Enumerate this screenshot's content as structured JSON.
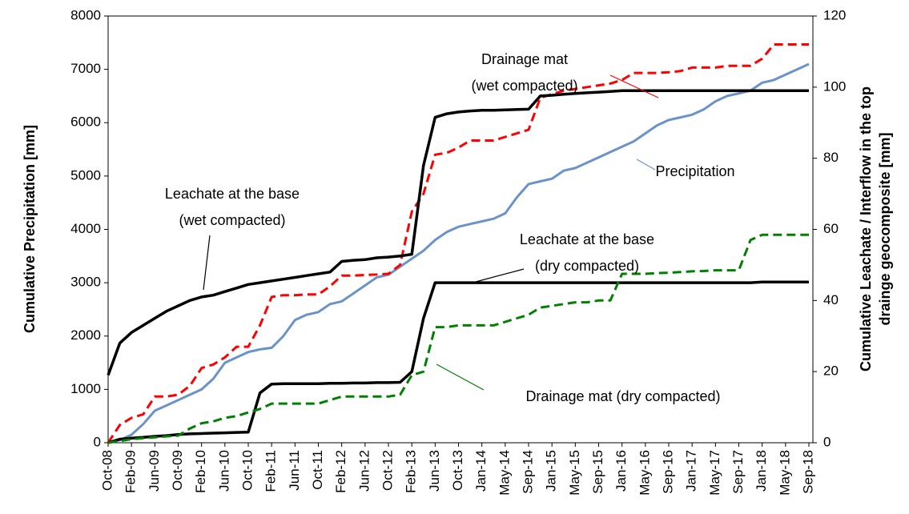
{
  "chart_data": {
    "type": "line",
    "y_label": "Cumulative Precipitation [mm]",
    "y2_label": [
      "Cumulative Leachate / Interflow in the top",
      "drainge geocomposite [mm]"
    ],
    "categories": [
      "Oct-08",
      null,
      "Feb-09",
      null,
      "Jun-09",
      null,
      "Oct-09",
      null,
      "Feb-10",
      null,
      "Jun-10",
      null,
      "Oct-10",
      null,
      "Feb-11",
      null,
      "Jun-11",
      null,
      "Oct-11",
      null,
      "Feb-12",
      null,
      "Jun-12",
      null,
      "Oct-12",
      null,
      "Feb-13",
      null,
      "Jun-13",
      null,
      "Oct-13",
      null,
      "Jan-14",
      null,
      "May-14",
      null,
      "Sep-14",
      null,
      "Jan-15",
      null,
      "May-15",
      null,
      "Sep-15",
      null,
      "Jan-16",
      null,
      "May-16",
      null,
      "Sep-16",
      null,
      "Jan-17",
      null,
      "May-17",
      null,
      "Sep-17",
      null,
      "Jan-18",
      null,
      "May-18",
      null,
      "Sep-18"
    ],
    "ylim": [
      0,
      8000
    ],
    "yticks": [
      0,
      1000,
      2000,
      3000,
      4000,
      5000,
      6000,
      7000,
      8000
    ],
    "y2lim": [
      0,
      120
    ],
    "y2ticks": [
      0,
      20,
      40,
      60,
      80,
      100,
      120
    ],
    "grid": false,
    "series": [
      {
        "label": [
          "Precipitation"
        ],
        "color": "#6b93c9",
        "dashed": false,
        "values": [
          0,
          50,
          150,
          350,
          600,
          700,
          800,
          900,
          1000,
          1200,
          1500,
          1600,
          1700,
          1750,
          1780,
          2000,
          2300,
          2400,
          2450,
          2600,
          2650,
          2800,
          2950,
          3100,
          3150,
          3300,
          3450,
          3600,
          3800,
          3950,
          4050,
          4100,
          4150,
          4200,
          4300,
          4600,
          4850,
          4900,
          4950,
          5100,
          5150,
          5250,
          5350,
          5450,
          5550,
          5650,
          5800,
          5950,
          6050,
          6100,
          6150,
          6250,
          6400,
          6500,
          6550,
          6600,
          6750,
          6800,
          6900,
          7000,
          7100
        ]
      },
      {
        "label": [
          "Drainage mat",
          "(wet compacted)"
        ],
        "color": "#ff0000",
        "dashed": true,
        "axis": "y2",
        "values": [
          0,
          5,
          7,
          8,
          13,
          13,
          13.5,
          16,
          21,
          22,
          24,
          27,
          27,
          33,
          41,
          41.5,
          41.5,
          41.7,
          41.7,
          44,
          47,
          47,
          47.2,
          47.3,
          47.5,
          50,
          65,
          70,
          81,
          81.5,
          83,
          85,
          85,
          85,
          86,
          87,
          88,
          97,
          98,
          99,
          99.5,
          100,
          100.5,
          101,
          102,
          104,
          104,
          104,
          104.2,
          104.5,
          105.5,
          105.5,
          105.5,
          106,
          106,
          106,
          108,
          112,
          112,
          112,
          112
        ]
      },
      {
        "label": [
          "Leachate at the base",
          "(wet compacted)"
        ],
        "color": "#000000",
        "dashed": false,
        "axis": "y2",
        "values": [
          19,
          28,
          31,
          33,
          35,
          37,
          38.5,
          40,
          41,
          41.5,
          42.5,
          43.5,
          44.5,
          45,
          45.5,
          46,
          46.5,
          47,
          47.5,
          48,
          51,
          51.3,
          51.5,
          52,
          52.2,
          52.5,
          53,
          78,
          91.5,
          92.5,
          93,
          93.3,
          93.5,
          93.5,
          93.6,
          93.7,
          93.8,
          97.5,
          97.7,
          98,
          98.2,
          98.4,
          98.6,
          98.8,
          99,
          99,
          99,
          99,
          99,
          99,
          99,
          99,
          99,
          99,
          99,
          99,
          99,
          99,
          99,
          99,
          99
        ]
      },
      {
        "label": [
          "Leachate at the base",
          "(dry compacted)"
        ],
        "color": "#000000",
        "dashed": false,
        "axis": "y2",
        "values": [
          0,
          1,
          1.3,
          1.5,
          1.8,
          2,
          2.3,
          2.5,
          2.6,
          2.7,
          2.8,
          2.9,
          3,
          14,
          16.5,
          16.6,
          16.6,
          16.6,
          16.6,
          16.7,
          16.7,
          16.8,
          16.8,
          16.9,
          16.9,
          17,
          20,
          35,
          45,
          45,
          45,
          45,
          45,
          45,
          45,
          45,
          45,
          45,
          45,
          45,
          45,
          45,
          45,
          45,
          45,
          45,
          45,
          45,
          45,
          45,
          45,
          45,
          45,
          45,
          45,
          45,
          45.2,
          45.2,
          45.2,
          45.2,
          45.2
        ]
      },
      {
        "label": [
          "Drainage mat (dry compacted)"
        ],
        "color": "#008000",
        "dashed": true,
        "axis": "y2",
        "values": [
          0,
          0.5,
          1,
          1.3,
          1.5,
          1.8,
          2,
          4,
          5.5,
          6,
          7,
          7.5,
          8.5,
          9.5,
          11,
          11,
          11,
          11,
          11,
          12,
          13,
          13,
          13,
          13,
          13,
          13.5,
          19,
          20,
          32.5,
          32.5,
          33,
          33,
          33,
          33,
          34,
          35,
          36,
          38,
          38.5,
          39,
          39.5,
          39.5,
          40,
          40,
          47.5,
          47.5,
          47.5,
          47.7,
          47.8,
          48,
          48.2,
          48.3,
          48.5,
          48.5,
          48.5,
          57,
          58.5,
          58.5,
          58.5,
          58.5,
          58.5
        ]
      }
    ]
  }
}
